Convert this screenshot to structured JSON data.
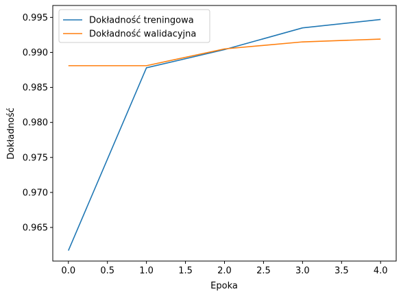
{
  "chart_data": {
    "type": "line",
    "title": "",
    "xlabel": "Epoka",
    "ylabel": "Dokładność",
    "x": [
      0,
      1,
      2,
      3,
      4
    ],
    "xlim": [
      -0.2,
      4.2
    ],
    "ylim": [
      0.9602,
      0.9967
    ],
    "xticks": [
      0.0,
      0.5,
      1.0,
      1.5,
      2.0,
      2.5,
      3.0,
      3.5,
      4.0
    ],
    "xtick_labels": [
      "0.0",
      "0.5",
      "1.0",
      "1.5",
      "2.0",
      "2.5",
      "3.0",
      "3.5",
      "4.0"
    ],
    "yticks": [
      0.965,
      0.97,
      0.975,
      0.98,
      0.985,
      0.99,
      0.995
    ],
    "ytick_labels": [
      "0.965",
      "0.970",
      "0.975",
      "0.980",
      "0.985",
      "0.990",
      "0.995"
    ],
    "grid": false,
    "legend_position": "top-left",
    "series": [
      {
        "name": "Dokładność treningowa",
        "color": "#1f77b4",
        "values": [
          0.9617,
          0.9878,
          0.9904,
          0.9935,
          0.9947
        ]
      },
      {
        "name": "Dokładność walidacyjna",
        "color": "#ff7f0e",
        "values": [
          0.9881,
          0.9881,
          0.9905,
          0.9915,
          0.9919
        ]
      }
    ]
  }
}
